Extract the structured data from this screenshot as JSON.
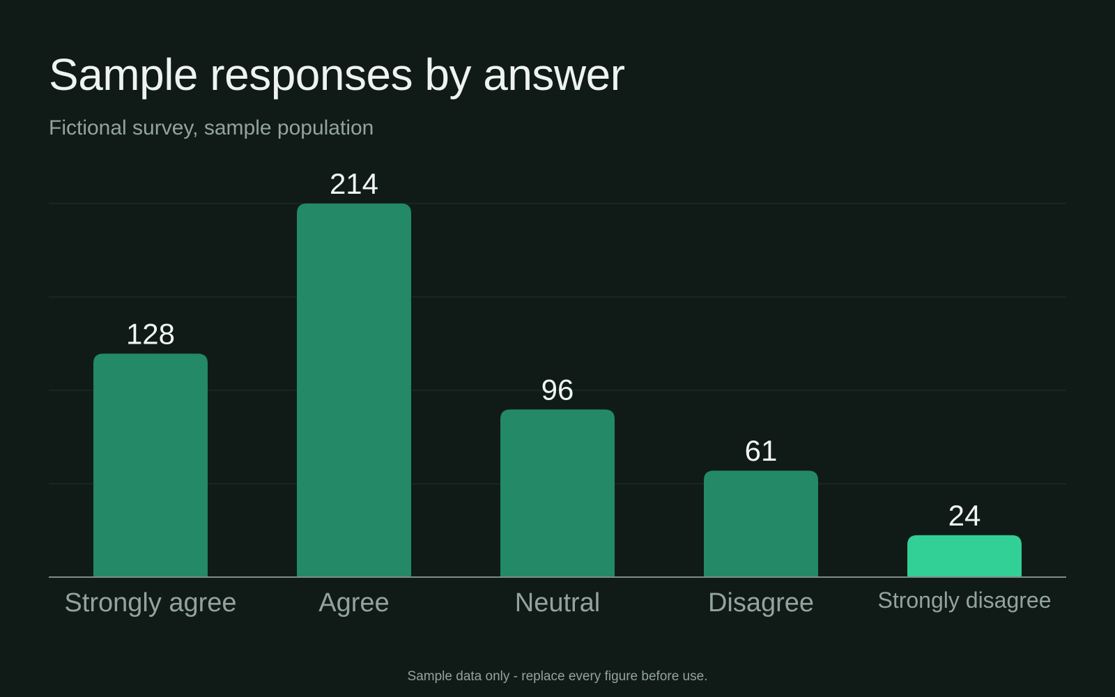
{
  "header": {
    "title": "Sample responses by answer",
    "subtitle": "Fictional survey, sample population"
  },
  "footer": {
    "note": "Sample data only - replace every figure before use."
  },
  "colors": {
    "background": "#101b18",
    "bar": "#238966",
    "highlight_bar": "#32cf96",
    "grid": "#22302b",
    "axis": "#7f8c87",
    "value_label": "#f2f6f4",
    "category_label": "#93a39d"
  },
  "chart_data": {
    "type": "bar",
    "title": "Sample responses by answer",
    "subtitle": "Fictional survey, sample population",
    "categories": [
      "Strongly agree",
      "Agree",
      "Neutral",
      "Disagree",
      "Strongly disagree"
    ],
    "values": [
      128,
      214,
      96,
      61,
      24
    ],
    "highlight_index": 4,
    "ylim": [
      0,
      214
    ],
    "grid": true,
    "grid_lines": 4,
    "data_labels": true,
    "xlabel": "",
    "ylabel": ""
  }
}
